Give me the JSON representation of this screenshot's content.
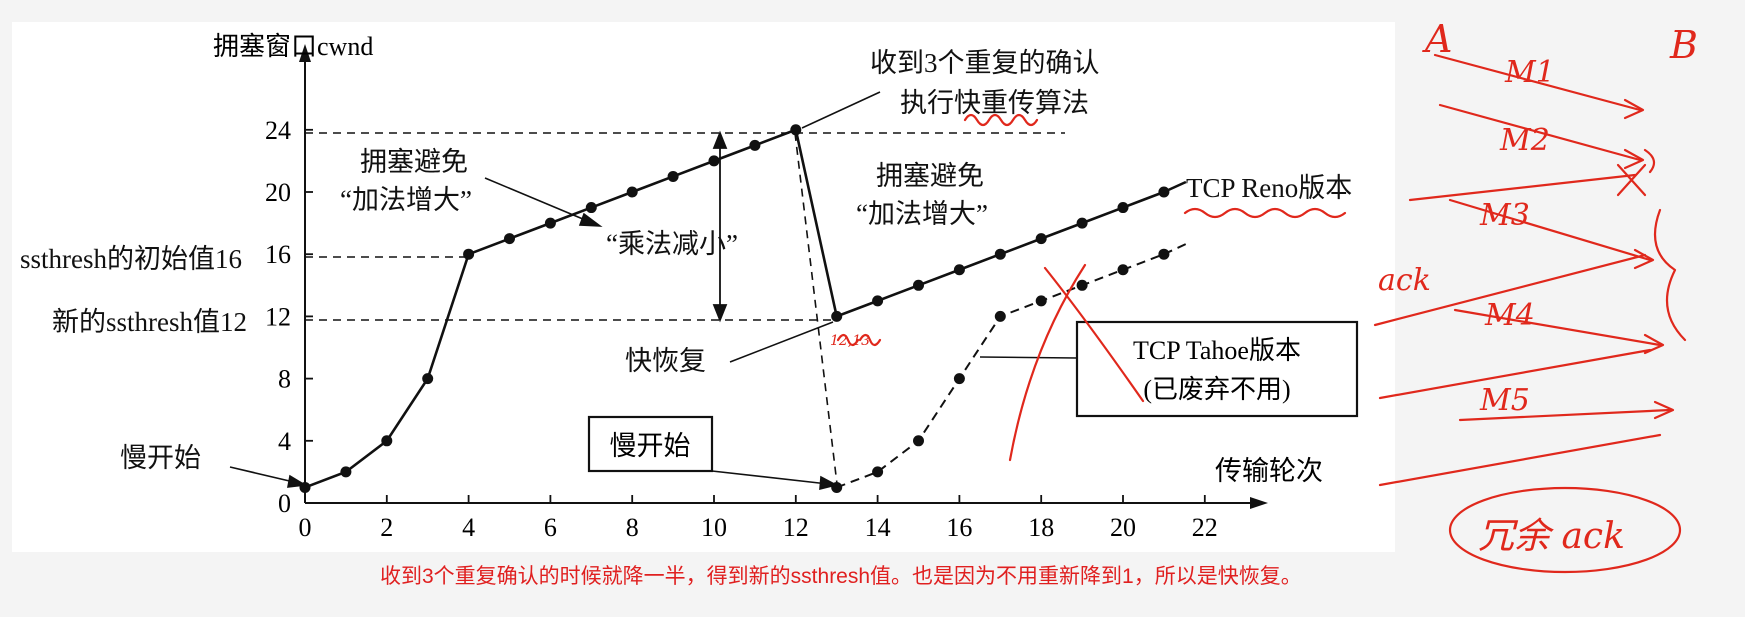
{
  "diagram": {
    "ylabel": "拥塞窗口cwnd",
    "xlabel": "传输轮次",
    "x_ticks": [
      "0",
      "2",
      "4",
      "6",
      "8",
      "10",
      "12",
      "14",
      "16",
      "18",
      "20",
      "22"
    ],
    "y_ticks": [
      "0",
      "4",
      "8",
      "12",
      "16",
      "20",
      "24"
    ],
    "labels": {
      "ssthresh_init": "ssthresh的初始值16",
      "ssthresh_new": "新的ssthresh值12",
      "slow_start_left": "慢开始",
      "slow_start_box": "慢开始",
      "ca1_line1": "拥塞避免",
      "ca1_line2": "“加法增大”",
      "ca2_line1": "拥塞避免",
      "ca2_line2": "“加法增大”",
      "md": "“乘法减小”",
      "fast_recovery": "快恢复",
      "dup_ack_line1": "收到3个重复的确认",
      "dup_ack_line2": "执行快重传算法",
      "reno": "TCP Reno版本",
      "tahoe_line1": "TCP Tahoe版本",
      "tahoe_line2": "(已废弃不用)"
    }
  },
  "chart_data": {
    "type": "line",
    "xlabel": "传输轮次",
    "ylabel": "拥塞窗口cwnd",
    "xlim": [
      0,
      22
    ],
    "ylim": [
      0,
      24
    ],
    "series": [
      {
        "name": "TCP Reno版本",
        "points": [
          [
            0,
            1
          ],
          [
            1,
            2
          ],
          [
            2,
            4
          ],
          [
            3,
            8
          ],
          [
            4,
            16
          ],
          [
            5,
            17
          ],
          [
            6,
            18
          ],
          [
            7,
            19
          ],
          [
            8,
            20
          ],
          [
            9,
            21
          ],
          [
            10,
            22
          ],
          [
            11,
            23
          ],
          [
            12,
            24
          ],
          [
            13,
            12
          ],
          [
            14,
            13
          ],
          [
            15,
            14
          ],
          [
            16,
            15
          ],
          [
            17,
            16
          ],
          [
            18,
            17
          ],
          [
            19,
            18
          ],
          [
            20,
            19
          ],
          [
            21,
            20
          ]
        ]
      },
      {
        "name": "TCP Tahoe版本",
        "points": [
          [
            13,
            1
          ],
          [
            14,
            2
          ],
          [
            15,
            4
          ],
          [
            16,
            8
          ],
          [
            17,
            12
          ],
          [
            18,
            13
          ],
          [
            19,
            14
          ],
          [
            20,
            15
          ],
          [
            21,
            16
          ]
        ]
      }
    ],
    "reference_lines": [
      24,
      16,
      12
    ]
  },
  "handwriting": {
    "left_host": "A",
    "right_host": "B",
    "messages": [
      "M1",
      "M2",
      "M3",
      "M4",
      "M5"
    ],
    "ack": "ack",
    "bottom": "冗余 ack",
    "pencil_marks": "12,13"
  },
  "caption": "收到3个重复确认的时候就降一半，得到新的ssthresh值。也是因为不用重新降到1，所以是快恢复。",
  "colors": {
    "ink": "#111111",
    "annotation": "#e0281c",
    "caption": "#e02020"
  }
}
